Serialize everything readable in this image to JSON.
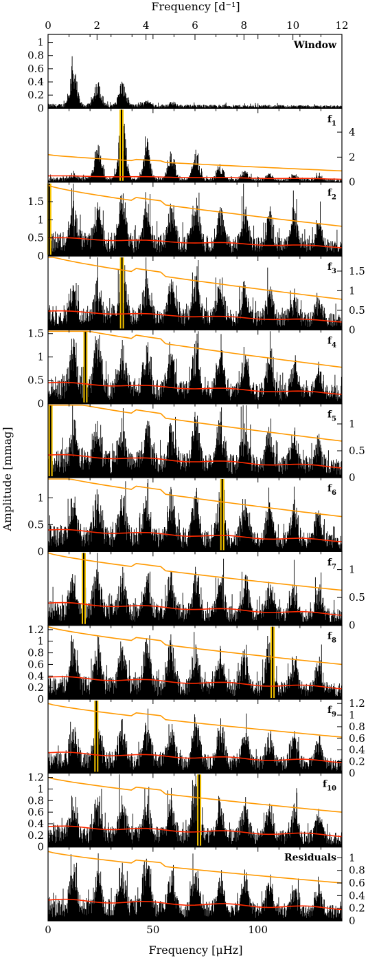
{
  "chart_data": {
    "type": "line",
    "xlabel_bottom": "Frequency [μHz]",
    "xlabel_top": "Frequency [d⁻¹]",
    "ylabel": "Amplitude [mmag]",
    "xlim_bottom": [
      0,
      140
    ],
    "xlim_top": [
      0,
      12
    ],
    "xticks_bottom": [
      "0",
      "50",
      "100"
    ],
    "xticks_top": [
      "0",
      "2",
      "4",
      "6",
      "8",
      "10",
      "12"
    ],
    "colors": {
      "spectrum": "#000000",
      "noise": "#ff2a00",
      "threshold": "#ff9900",
      "highlight": "#f5c400"
    },
    "peaks": [
      12.0,
      23.6,
      35.3,
      47.0,
      58.7,
      70.4,
      82.1,
      93.8,
      105.5,
      117.2,
      128.9
    ],
    "panels": [
      {
        "label": "Window",
        "yaxis": "left",
        "ylim": [
          0,
          1.1
        ],
        "yticks": [
          {
            "v": 0,
            "t": "0"
          },
          {
            "v": 0.2,
            "t": "0.2"
          },
          {
            "v": 0.4,
            "t": "0.4"
          },
          {
            "v": 0.6,
            "t": "0.6"
          },
          {
            "v": 0.8,
            "t": "0.8"
          },
          {
            "v": 1,
            "t": "1"
          }
        ],
        "base": 0.07,
        "peak_amp": [
          0.68,
          0.4,
          0.4,
          0.1,
          0.04
        ],
        "noise": null,
        "threshold": null,
        "highlight": null
      },
      {
        "label": "f",
        "sub": "1",
        "yaxis": "right",
        "ylim": [
          0,
          5.8
        ],
        "yticks": [
          {
            "v": 0,
            "t": "0"
          },
          {
            "v": 2,
            "t": "2"
          },
          {
            "v": 4,
            "t": "4"
          }
        ],
        "base": 0.4,
        "peak_amp": [
          0.4,
          3.0,
          5.6,
          3.3,
          2.6,
          2.3,
          1.2,
          0.8,
          0.6,
          0.5,
          0.4
        ],
        "noise": [
          0.5,
          0.25
        ],
        "threshold": [
          2.2,
          0.9
        ],
        "highlight": 35.0
      },
      {
        "label": "f",
        "sub": "2",
        "yaxis": "left",
        "ylim": [
          0,
          2.0
        ],
        "yticks": [
          {
            "v": 0,
            "t": "0"
          },
          {
            "v": 0.5,
            "t": "0.5"
          },
          {
            "v": 1,
            "t": "1"
          },
          {
            "v": 1.5,
            "t": "1.5"
          }
        ],
        "base": 0.7,
        "peak_amp": [
          1.1,
          1.2,
          1.4,
          1.3,
          1.2,
          1.3,
          1.1,
          1.1,
          1.0,
          0.9,
          0.8
        ],
        "noise": [
          0.5,
          0.25
        ],
        "threshold": [
          1.95,
          0.82
        ],
        "highlight": 0.6
      },
      {
        "label": "f",
        "sub": "3",
        "yaxis": "right",
        "ylim": [
          0,
          1.85
        ],
        "yticks": [
          {
            "v": 0,
            "t": "0"
          },
          {
            "v": 0.5,
            "t": "0.5"
          },
          {
            "v": 1,
            "t": "1"
          },
          {
            "v": 1.5,
            "t": "1.5"
          }
        ],
        "base": 0.65,
        "peak_amp": [
          0.9,
          1.0,
          1.5,
          1.2,
          1.1,
          1.25,
          1.1,
          1.0,
          0.9,
          0.8,
          0.7
        ],
        "noise": [
          0.48,
          0.22
        ],
        "threshold": [
          1.9,
          0.78
        ],
        "highlight": 35.2
      },
      {
        "label": "f",
        "sub": "4",
        "yaxis": "left",
        "ylim": [
          0,
          1.55
        ],
        "yticks": [
          {
            "v": 0,
            "t": "0"
          },
          {
            "v": 0.5,
            "t": "0.5"
          },
          {
            "v": 1,
            "t": "1"
          },
          {
            "v": 1.5,
            "t": "1.5"
          }
        ],
        "base": 0.6,
        "peak_amp": [
          1.2,
          1.4,
          1.0,
          1.0,
          1.0,
          1.1,
          1.1,
          0.95,
          0.9,
          0.8,
          0.7
        ],
        "noise": [
          0.45,
          0.22
        ],
        "threshold": [
          1.75,
          0.78
        ],
        "highlight": 17.8
      },
      {
        "label": "f",
        "sub": "5",
        "yaxis": "right",
        "ylim": [
          0,
          1.35
        ],
        "yticks": [
          {
            "v": 0,
            "t": "0"
          },
          {
            "v": 0.5,
            "t": "0.5"
          },
          {
            "v": 1,
            "t": "1"
          }
        ],
        "base": 0.55,
        "peak_amp": [
          0.7,
          0.8,
          0.8,
          0.85,
          0.8,
          1.05,
          1.0,
          0.85,
          0.75,
          0.7,
          0.6
        ],
        "noise": [
          0.42,
          0.2
        ],
        "threshold": [
          1.5,
          0.68
        ],
        "highlight": 1.2
      },
      {
        "label": "f",
        "sub": "6",
        "yaxis": "left",
        "ylim": [
          0,
          1.35
        ],
        "yticks": [
          {
            "v": 0,
            "t": "0"
          },
          {
            "v": 0.5,
            "t": "0.5"
          },
          {
            "v": 1,
            "t": "1"
          }
        ],
        "base": 0.5,
        "peak_amp": [
          0.8,
          0.8,
          0.85,
          0.9,
          0.9,
          1.0,
          0.95,
          0.85,
          0.75,
          0.65,
          0.6
        ],
        "noise": [
          0.4,
          0.2
        ],
        "threshold": [
          1.45,
          0.65
        ],
        "highlight": 83.0
      },
      {
        "label": "f",
        "sub": "7",
        "yaxis": "right",
        "ylim": [
          0,
          1.3
        ],
        "yticks": [
          {
            "v": 0,
            "t": "0"
          },
          {
            "v": 0.5,
            "t": "0.5"
          },
          {
            "v": 1,
            "t": "1"
          }
        ],
        "base": 0.45,
        "peak_amp": [
          0.7,
          0.85,
          0.75,
          0.75,
          0.8,
          0.8,
          0.75,
          0.75,
          0.7,
          0.6,
          0.55
        ],
        "noise": [
          0.4,
          0.2
        ],
        "threshold": [
          1.3,
          0.63
        ],
        "highlight": 17.0
      },
      {
        "label": "f",
        "sub": "8",
        "yaxis": "left",
        "ylim": [
          0,
          1.25
        ],
        "yticks": [
          {
            "v": 0,
            "t": "0"
          },
          {
            "v": 0.2,
            "t": "0.2"
          },
          {
            "v": 0.4,
            "t": "0.4"
          },
          {
            "v": 0.6,
            "t": "0.6"
          },
          {
            "v": 0.8,
            "t": "0.8"
          },
          {
            "v": 1,
            "t": "1"
          },
          {
            "v": 1.2,
            "t": "1.2"
          }
        ],
        "base": 0.42,
        "peak_amp": [
          0.8,
          0.85,
          0.85,
          0.85,
          0.85,
          0.8,
          0.7,
          0.7,
          1.15,
          0.6,
          0.55
        ],
        "noise": [
          0.38,
          0.2
        ],
        "threshold": [
          1.25,
          0.6
        ],
        "highlight": 107.0
      },
      {
        "label": "f",
        "sub": "9",
        "yaxis": "right",
        "ylim": [
          0,
          1.25
        ],
        "yticks": [
          {
            "v": 0,
            "t": "0"
          },
          {
            "v": 0.2,
            "t": "0.2"
          },
          {
            "v": 0.4,
            "t": "0.4"
          },
          {
            "v": 0.6,
            "t": "0.6"
          },
          {
            "v": 0.8,
            "t": "0.8"
          },
          {
            "v": 1,
            "t": "1"
          },
          {
            "v": 1.2,
            "t": "1.2"
          }
        ],
        "base": 0.4,
        "peak_amp": [
          0.7,
          0.75,
          0.7,
          0.75,
          0.75,
          0.9,
          0.7,
          0.65,
          0.6,
          0.55,
          0.5
        ],
        "noise": [
          0.35,
          0.2
        ],
        "threshold": [
          1.2,
          0.62
        ],
        "highlight": 23.0
      },
      {
        "label": "f",
        "sub": "10",
        "yaxis": "left",
        "ylim": [
          0,
          1.25
        ],
        "yticks": [
          {
            "v": 0,
            "t": "0"
          },
          {
            "v": 0.2,
            "t": "0.2"
          },
          {
            "v": 0.4,
            "t": "0.4"
          },
          {
            "v": 0.6,
            "t": "0.6"
          },
          {
            "v": 0.8,
            "t": "0.8"
          },
          {
            "v": 1,
            "t": "1"
          },
          {
            "v": 1.2,
            "t": "1.2"
          }
        ],
        "base": 0.4,
        "peak_amp": [
          0.7,
          0.75,
          0.7,
          0.75,
          0.75,
          0.95,
          0.7,
          0.65,
          0.6,
          0.55,
          0.5
        ],
        "noise": [
          0.35,
          0.2
        ],
        "threshold": [
          1.2,
          0.6
        ],
        "highlight": 72.0
      },
      {
        "label": "Residuals",
        "yaxis": "right",
        "ylim": [
          0,
          1.15
        ],
        "yticks": [
          {
            "v": 0,
            "t": "0"
          },
          {
            "v": 0.2,
            "t": "0.2"
          },
          {
            "v": 0.4,
            "t": "0.4"
          },
          {
            "v": 0.6,
            "t": "0.6"
          },
          {
            "v": 0.8,
            "t": "0.8"
          },
          {
            "v": 1,
            "t": "1"
          }
        ],
        "base": 0.38,
        "peak_amp": [
          0.65,
          0.7,
          0.7,
          0.95,
          0.7,
          0.7,
          0.65,
          0.6,
          0.55,
          0.5,
          0.45
        ],
        "noise": [
          0.33,
          0.2
        ],
        "threshold": [
          1.1,
          0.6
        ],
        "highlight": null
      }
    ]
  }
}
